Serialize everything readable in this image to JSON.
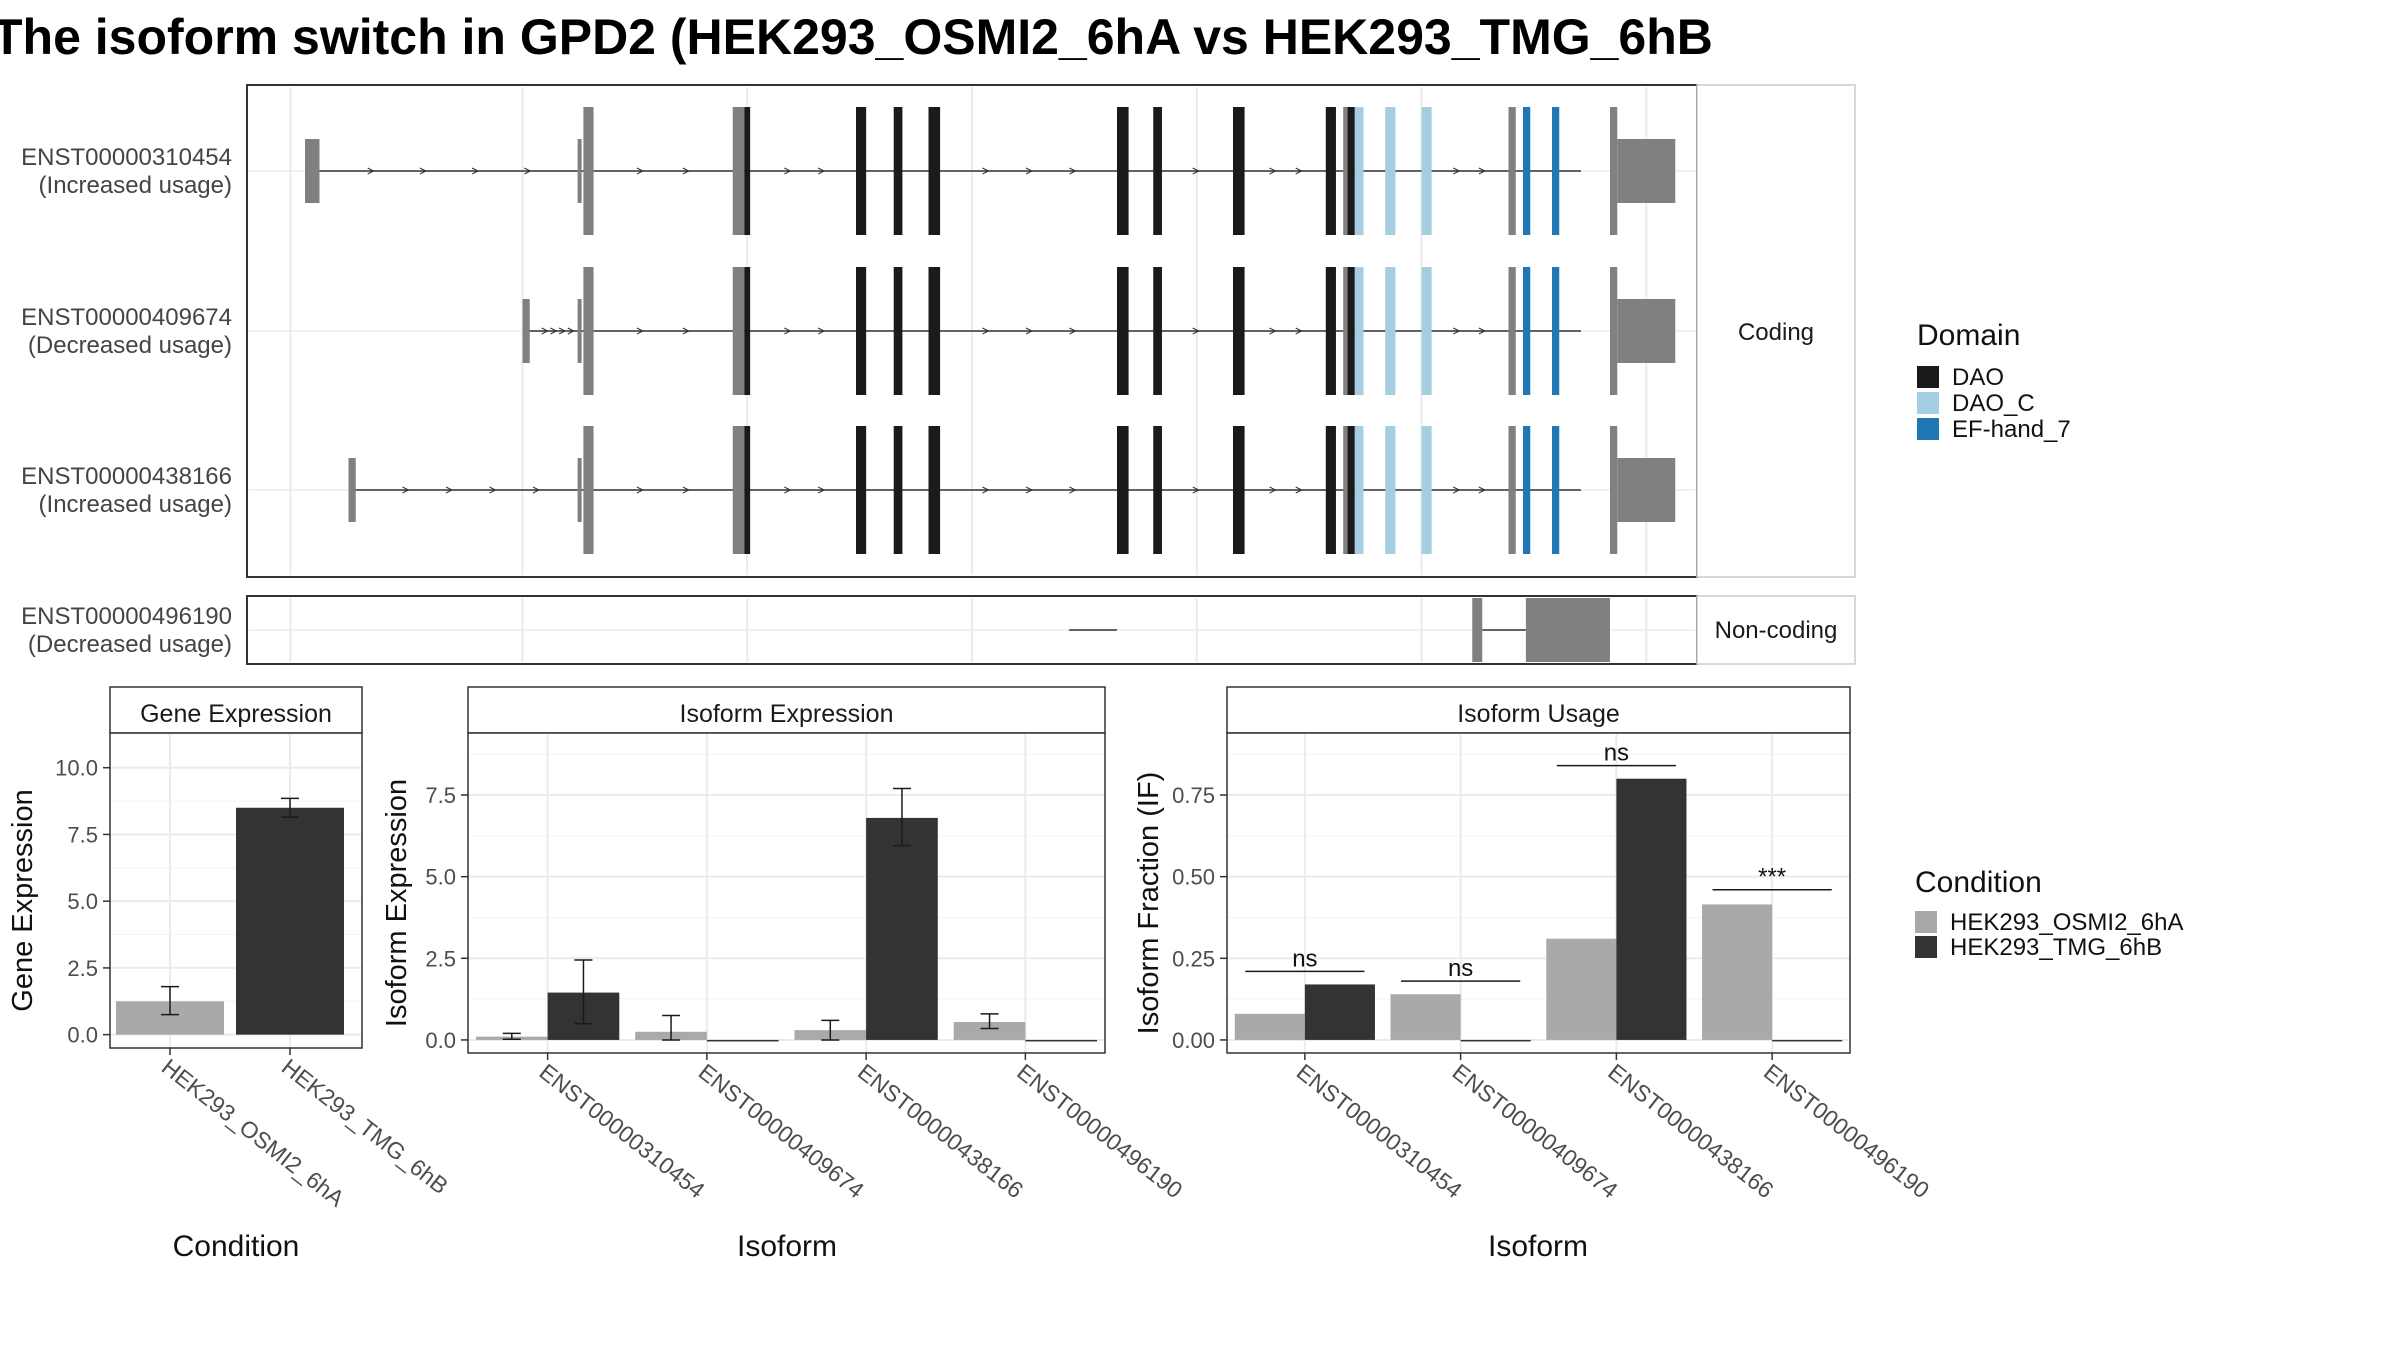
{
  "title": "The isoform switch in GPD2 (HEK293_OSMI2_6hA vs HEK293_TMG_6hB",
  "colors": {
    "DAO": "#1a1a1a",
    "DAO_C": "#a6cee3",
    "EF-hand_7": "#1f78b4",
    "exon": "#808080",
    "condA": "#a9a9a9",
    "condB": "#333333"
  },
  "structure": {
    "coding_label": "Coding",
    "noncoding_label": "Non-coding",
    "transcripts": [
      {
        "id": "ENST00000310454",
        "usage": "(Increased usage)",
        "group": "Coding",
        "first_exon": 0.04,
        "second_exon": 0.23,
        "tail_domain_extra": true
      },
      {
        "id": "ENST00000409674",
        "usage": "(Decreased usage)",
        "group": "Coding",
        "first_exon": 0.19,
        "second_exon": 0.23
      },
      {
        "id": "ENST00000438166",
        "usage": "(Increased usage)",
        "group": "Coding",
        "first_exon": 0.07,
        "second_exon": 0.23
      },
      {
        "id": "ENST00000496190",
        "usage": "(Decreased usage)",
        "group": "Non-coding"
      }
    ]
  },
  "legend_domain": {
    "title": "Domain",
    "items": [
      "DAO",
      "DAO_C",
      "EF-hand_7"
    ]
  },
  "legend_condition": {
    "title": "Condition",
    "items": [
      "HEK293_OSMI2_6hA",
      "HEK293_TMG_6hB"
    ]
  },
  "chart_data": [
    {
      "type": "bar",
      "title": "Gene Expression",
      "xlabel": "Condition",
      "ylabel": "Gene Expression",
      "ylim": [
        -0.5,
        11.3
      ],
      "yticks": [
        "0.0",
        "2.5",
        "5.0",
        "7.5",
        "10.0"
      ],
      "categories": [
        "HEK293_OSMI2_6hA",
        "HEK293_TMG_6hB"
      ],
      "series": [
        {
          "name": "HEK293_OSMI2_6hA",
          "values": [
            1.25,
            null
          ],
          "err": [
            [
              0.75,
              1.8
            ],
            null
          ]
        },
        {
          "name": "HEK293_TMG_6hB",
          "values": [
            null,
            8.5
          ],
          "err": [
            null,
            [
              8.15,
              8.85
            ]
          ]
        }
      ]
    },
    {
      "type": "bar",
      "title": "Isoform Expression",
      "xlabel": "Isoform",
      "ylabel": "Isoform Expression",
      "ylim": [
        -0.4,
        9.4
      ],
      "yticks": [
        "0.0",
        "2.5",
        "5.0",
        "7.5"
      ],
      "categories": [
        "ENST00000310454",
        "ENST00000409674",
        "ENST00000438166",
        "ENST00000496190"
      ],
      "series": [
        {
          "name": "HEK293_OSMI2_6hA",
          "values": [
            0.1,
            0.25,
            0.3,
            0.55
          ],
          "err": [
            [
              0.02,
              0.2
            ],
            [
              0.0,
              0.75
            ],
            [
              0.0,
              0.6
            ],
            [
              0.35,
              0.8
            ]
          ]
        },
        {
          "name": "HEK293_TMG_6hB",
          "values": [
            1.45,
            0.0,
            6.8,
            0.0
          ],
          "err": [
            [
              0.5,
              2.45
            ],
            null,
            [
              5.95,
              7.7
            ],
            null
          ]
        }
      ]
    },
    {
      "type": "bar",
      "title": "Isoform Usage",
      "xlabel": "Isoform",
      "ylabel": "Isoform Fraction (IF)",
      "ylim": [
        -0.04,
        0.94
      ],
      "yticks": [
        "0.00",
        "0.25",
        "0.50",
        "0.75"
      ],
      "categories": [
        "ENST00000310454",
        "ENST00000409674",
        "ENST00000438166",
        "ENST00000496190"
      ],
      "series": [
        {
          "name": "HEK293_OSMI2_6hA",
          "values": [
            0.08,
            0.14,
            0.31,
            0.415
          ]
        },
        {
          "name": "HEK293_TMG_6hB",
          "values": [
            0.17,
            0.0,
            0.8,
            0.0
          ]
        }
      ],
      "significance": [
        "ns",
        "ns",
        "ns",
        "***"
      ],
      "sig_y": [
        0.21,
        0.18,
        0.84,
        0.46
      ]
    }
  ]
}
